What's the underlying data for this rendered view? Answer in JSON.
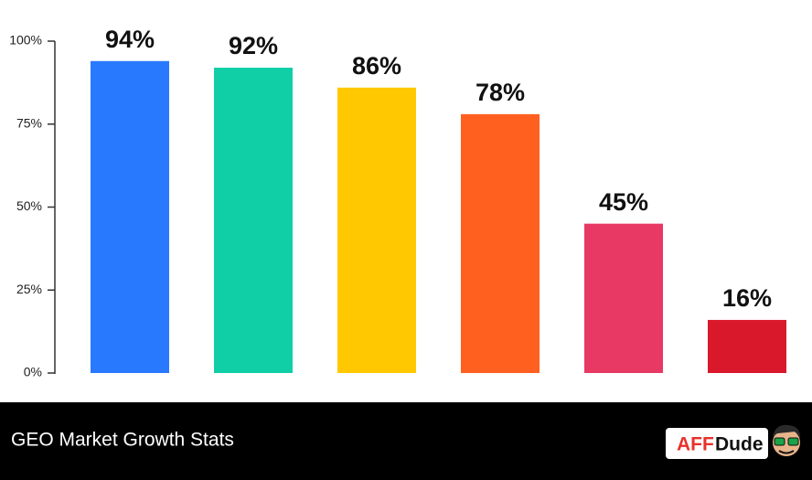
{
  "chart_data": {
    "type": "bar",
    "categories": [
      null,
      null,
      null,
      null,
      null,
      null
    ],
    "values": [
      94,
      92,
      86,
      78,
      45,
      16
    ],
    "value_labels": [
      "94%",
      "92%",
      "86%",
      "78%",
      "45%",
      "16%"
    ],
    "colors": [
      "#2979ff",
      "#10cfa6",
      "#ffc800",
      "#ff5f1f",
      "#e83864",
      "#d9182b"
    ],
    "ylim": [
      0,
      100
    ],
    "yticks": [
      {
        "value": 0,
        "label": "0%"
      },
      {
        "value": 25,
        "label": "25%"
      },
      {
        "value": 50,
        "label": "50%"
      },
      {
        "value": 75,
        "label": "75%"
      },
      {
        "value": 100,
        "label": "100%"
      }
    ],
    "grid": false
  },
  "footer": {
    "caption": "GEO Market Growth Stats",
    "logo_red": "AFF",
    "logo_dark": "Dude"
  }
}
